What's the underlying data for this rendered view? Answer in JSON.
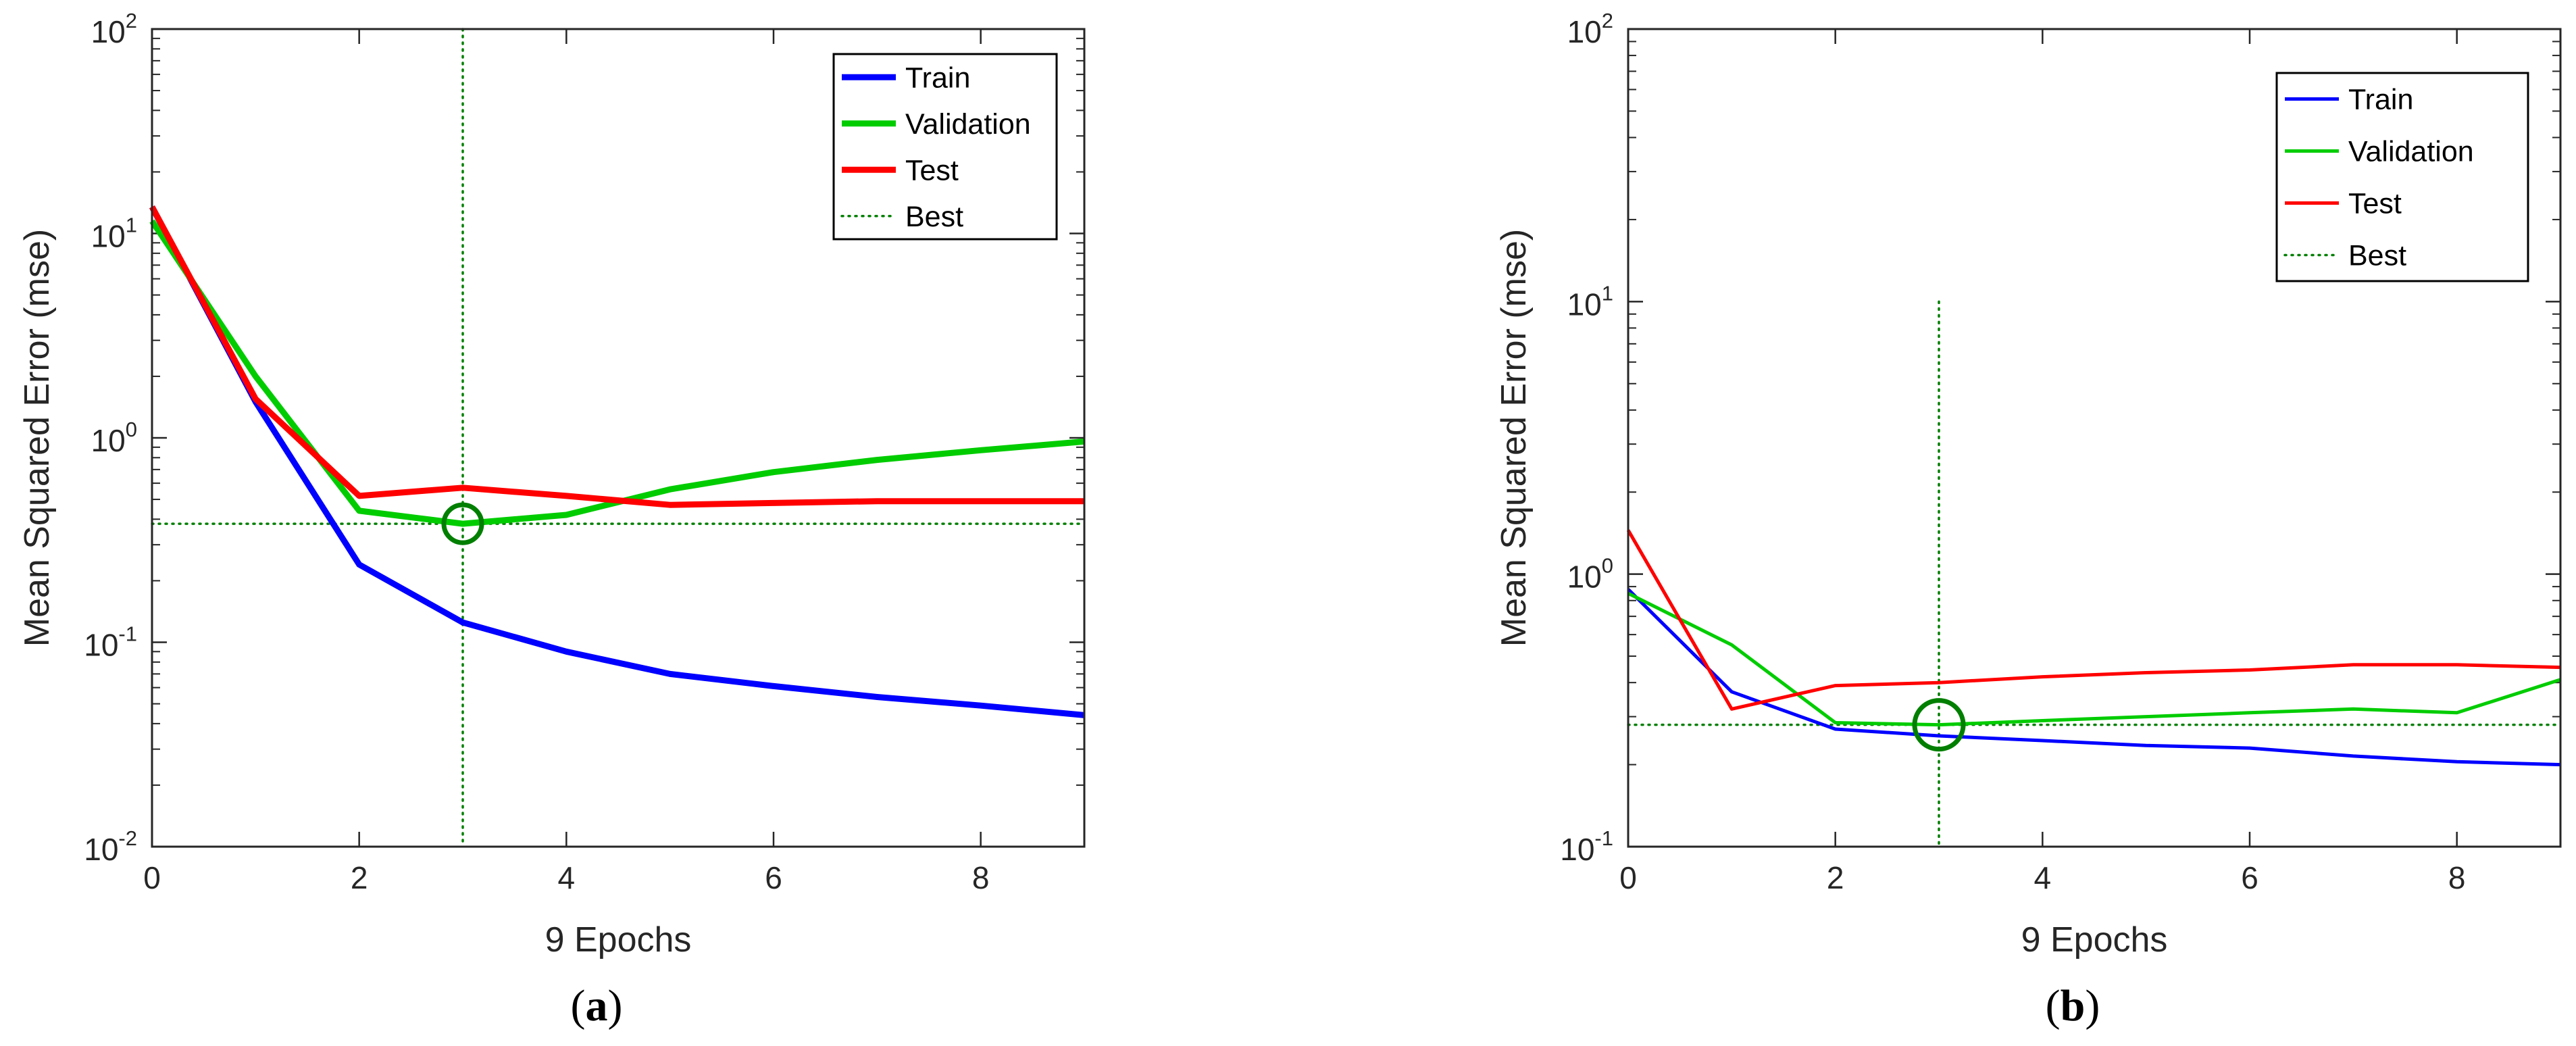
{
  "colors": {
    "train": "#0000ff",
    "validation": "#00cc00",
    "test": "#ff0000",
    "best": "#007f00",
    "axis": "#262626"
  },
  "chart_data": [
    {
      "type": "line",
      "panel_label": "a",
      "xlabel": "9 Epochs",
      "ylabel": "Mean Squared Error  (mse)",
      "yscale": "log",
      "xlim": [
        0,
        9
      ],
      "ylim": [
        0.01,
        100
      ],
      "xticks": [
        0,
        2,
        4,
        6,
        8
      ],
      "yticks": [
        {
          "value": 0.01,
          "base": "10",
          "exp": "-2"
        },
        {
          "value": 0.1,
          "base": "10",
          "exp": "-1"
        },
        {
          "value": 1,
          "base": "10",
          "exp": "0"
        },
        {
          "value": 10,
          "base": "10",
          "exp": "1"
        },
        {
          "value": 100,
          "base": "10",
          "exp": "2"
        }
      ],
      "x": [
        0,
        1,
        2,
        3,
        4,
        5,
        6,
        7,
        8,
        9
      ],
      "series": [
        {
          "name": "Train",
          "key": "train",
          "values": [
            13.5,
            1.5,
            0.24,
            0.125,
            0.09,
            0.07,
            0.061,
            0.054,
            0.049,
            0.044
          ]
        },
        {
          "name": "Validation",
          "key": "validation",
          "values": [
            11.5,
            2.0,
            0.44,
            0.38,
            0.42,
            0.56,
            0.68,
            0.78,
            0.87,
            0.96
          ]
        },
        {
          "name": "Test",
          "key": "test",
          "values": [
            13.5,
            1.55,
            0.52,
            0.57,
            0.52,
            0.47,
            0.48,
            0.49,
            0.49,
            0.49
          ]
        }
      ],
      "best": {
        "label": "Best",
        "epoch": 3,
        "value": 0.38
      },
      "legend_position": "top-right",
      "line_weight": "thick"
    },
    {
      "type": "line",
      "panel_label": "b",
      "xlabel": "9 Epochs",
      "ylabel": "Mean Squared Error  (mse)",
      "yscale": "log",
      "xlim": [
        0,
        9
      ],
      "ylim": [
        0.1,
        100
      ],
      "xticks": [
        0,
        2,
        4,
        6,
        8
      ],
      "yticks": [
        {
          "value": 0.1,
          "base": "10",
          "exp": "-1"
        },
        {
          "value": 1,
          "base": "10",
          "exp": "0"
        },
        {
          "value": 10,
          "base": "10",
          "exp": "1"
        },
        {
          "value": 100,
          "base": "10",
          "exp": "2"
        }
      ],
      "x": [
        0,
        1,
        2,
        3,
        4,
        5,
        6,
        7,
        8,
        9
      ],
      "series": [
        {
          "name": "Train",
          "key": "train",
          "values": [
            0.88,
            0.37,
            0.27,
            0.255,
            0.245,
            0.235,
            0.23,
            0.215,
            0.205,
            0.2
          ]
        },
        {
          "name": "Validation",
          "key": "validation",
          "values": [
            0.85,
            0.55,
            0.285,
            0.28,
            0.29,
            0.3,
            0.31,
            0.32,
            0.31,
            0.41
          ]
        },
        {
          "name": "Test",
          "key": "test",
          "values": [
            1.45,
            0.32,
            0.39,
            0.4,
            0.42,
            0.435,
            0.445,
            0.465,
            0.465,
            0.455
          ]
        }
      ],
      "best": {
        "label": "Best",
        "epoch": 3,
        "value": 0.28
      },
      "best_vline_top": 10,
      "legend_position": "top-right",
      "line_weight": "thin"
    }
  ]
}
